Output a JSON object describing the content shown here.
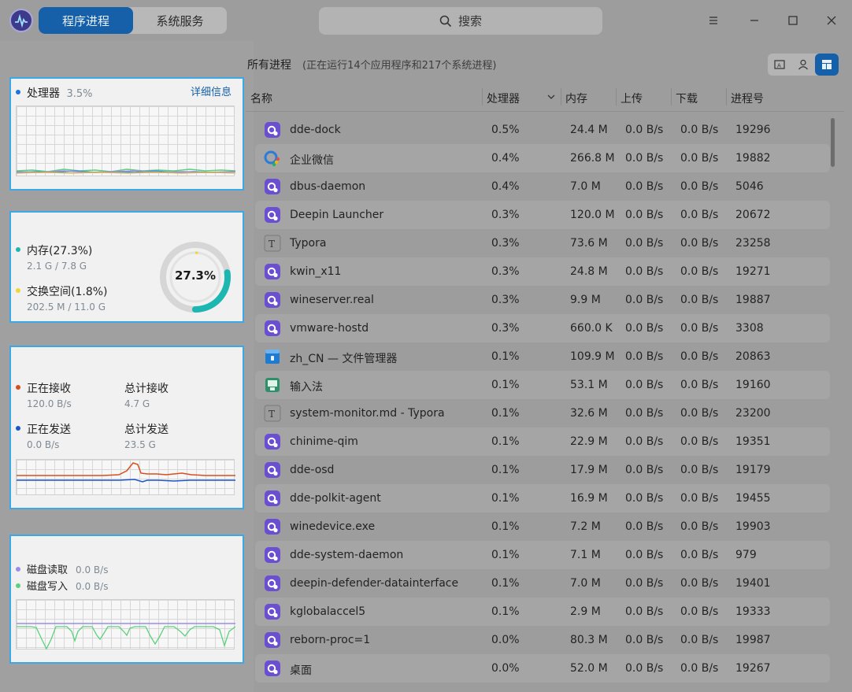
{
  "tabs": [
    "程序进程",
    "系统服务"
  ],
  "search_placeholder": "搜索",
  "cpu": {
    "label": "处理器",
    "value": "3.5%",
    "detail_link": "详细信息"
  },
  "memory": {
    "label": "内存(27.3%)",
    "sub": "2.1 G / 7.8 G",
    "swap_label": "交换空间(1.8%)",
    "swap_sub": "202.5 M / 11.0 G",
    "ring_text": "27.3%",
    "percent": 27.3
  },
  "network": {
    "recv_label": "正在接收",
    "recv_value": "120.0 B/s",
    "total_recv_label": "总计接收",
    "total_recv_value": "4.7 G",
    "send_label": "正在发送",
    "send_value": "0.0 B/s",
    "total_send_label": "总计发送",
    "total_send_value": "23.5 G"
  },
  "disk": {
    "read_label": "磁盘读取",
    "read_value": "0.0 B/s",
    "write_label": "磁盘写入",
    "write_value": "0.0 B/s"
  },
  "filter": {
    "title": "所有进程",
    "subtitle": "(正在运行14个应用程序和217个系统进程)"
  },
  "columns": [
    "名称",
    "处理器",
    "内存",
    "上传",
    "下载",
    "进程号"
  ],
  "colors": {
    "accent": "#1560a8",
    "cpu_dot": "#1e74d8",
    "mem_dot": "#1bb7b0",
    "swap_dot": "#f0d63a",
    "recv_dot": "#d5501d",
    "send_dot": "#1a56c9",
    "read_dot": "#9a8de6",
    "write_dot": "#5bd17a"
  },
  "processes": [
    {
      "icon": "app-gear-icon",
      "name": "dde-dock",
      "cpu": "0.5%",
      "mem": "24.4 M",
      "up": "0.0 B/s",
      "down": "0.0 B/s",
      "pid": "19296"
    },
    {
      "icon": "wecom-icon",
      "name": "企业微信",
      "cpu": "0.4%",
      "mem": "266.8 M",
      "up": "0.0 B/s",
      "down": "0.0 B/s",
      "pid": "19882"
    },
    {
      "icon": "app-gear-icon",
      "name": "dbus-daemon",
      "cpu": "0.4%",
      "mem": "7.0 M",
      "up": "0.0 B/s",
      "down": "0.0 B/s",
      "pid": "5046"
    },
    {
      "icon": "app-gear-icon",
      "name": "Deepin Launcher",
      "cpu": "0.3%",
      "mem": "120.0 M",
      "up": "0.0 B/s",
      "down": "0.0 B/s",
      "pid": "20672"
    },
    {
      "icon": "typora-icon",
      "name": "Typora",
      "cpu": "0.3%",
      "mem": "73.6 M",
      "up": "0.0 B/s",
      "down": "0.0 B/s",
      "pid": "23258"
    },
    {
      "icon": "app-gear-icon",
      "name": "kwin_x11",
      "cpu": "0.3%",
      "mem": "24.8 M",
      "up": "0.0 B/s",
      "down": "0.0 B/s",
      "pid": "19271"
    },
    {
      "icon": "app-gear-icon",
      "name": "wineserver.real",
      "cpu": "0.3%",
      "mem": "9.9 M",
      "up": "0.0 B/s",
      "down": "0.0 B/s",
      "pid": "19887"
    },
    {
      "icon": "app-gear-icon",
      "name": "vmware-hostd",
      "cpu": "0.3%",
      "mem": "660.0 K",
      "up": "0.0 B/s",
      "down": "0.0 B/s",
      "pid": "3308"
    },
    {
      "icon": "file-manager-icon",
      "name": "zh_CN — 文件管理器",
      "cpu": "0.1%",
      "mem": "109.9 M",
      "up": "0.0 B/s",
      "down": "0.0 B/s",
      "pid": "20863"
    },
    {
      "icon": "input-method-icon",
      "name": "输入法",
      "cpu": "0.1%",
      "mem": "53.1 M",
      "up": "0.0 B/s",
      "down": "0.0 B/s",
      "pid": "19160"
    },
    {
      "icon": "typora-icon",
      "name": "system-monitor.md - Typora",
      "cpu": "0.1%",
      "mem": "32.6 M",
      "up": "0.0 B/s",
      "down": "0.0 B/s",
      "pid": "23200"
    },
    {
      "icon": "app-gear-icon",
      "name": "chinime-qim",
      "cpu": "0.1%",
      "mem": "22.9 M",
      "up": "0.0 B/s",
      "down": "0.0 B/s",
      "pid": "19351"
    },
    {
      "icon": "app-gear-icon",
      "name": "dde-osd",
      "cpu": "0.1%",
      "mem": "17.9 M",
      "up": "0.0 B/s",
      "down": "0.0 B/s",
      "pid": "19179"
    },
    {
      "icon": "app-gear-icon",
      "name": "dde-polkit-agent",
      "cpu": "0.1%",
      "mem": "16.9 M",
      "up": "0.0 B/s",
      "down": "0.0 B/s",
      "pid": "19455"
    },
    {
      "icon": "app-gear-icon",
      "name": "winedevice.exe",
      "cpu": "0.1%",
      "mem": "7.2 M",
      "up": "0.0 B/s",
      "down": "0.0 B/s",
      "pid": "19903"
    },
    {
      "icon": "app-gear-icon",
      "name": "dde-system-daemon",
      "cpu": "0.1%",
      "mem": "7.1 M",
      "up": "0.0 B/s",
      "down": "0.0 B/s",
      "pid": "979"
    },
    {
      "icon": "app-gear-icon",
      "name": "deepin-defender-datainterface",
      "cpu": "0.1%",
      "mem": "7.0 M",
      "up": "0.0 B/s",
      "down": "0.0 B/s",
      "pid": "19401"
    },
    {
      "icon": "app-gear-icon",
      "name": "kglobalaccel5",
      "cpu": "0.1%",
      "mem": "2.9 M",
      "up": "0.0 B/s",
      "down": "0.0 B/s",
      "pid": "19333"
    },
    {
      "icon": "app-gear-icon",
      "name": "reborn-proc=1",
      "cpu": "0.0%",
      "mem": "80.3 M",
      "up": "0.0 B/s",
      "down": "0.0 B/s",
      "pid": "19987"
    },
    {
      "icon": "app-gear-icon",
      "name": "桌面",
      "cpu": "0.0%",
      "mem": "52.0 M",
      "up": "0.0 B/s",
      "down": "0.0 B/s",
      "pid": "19267"
    }
  ]
}
